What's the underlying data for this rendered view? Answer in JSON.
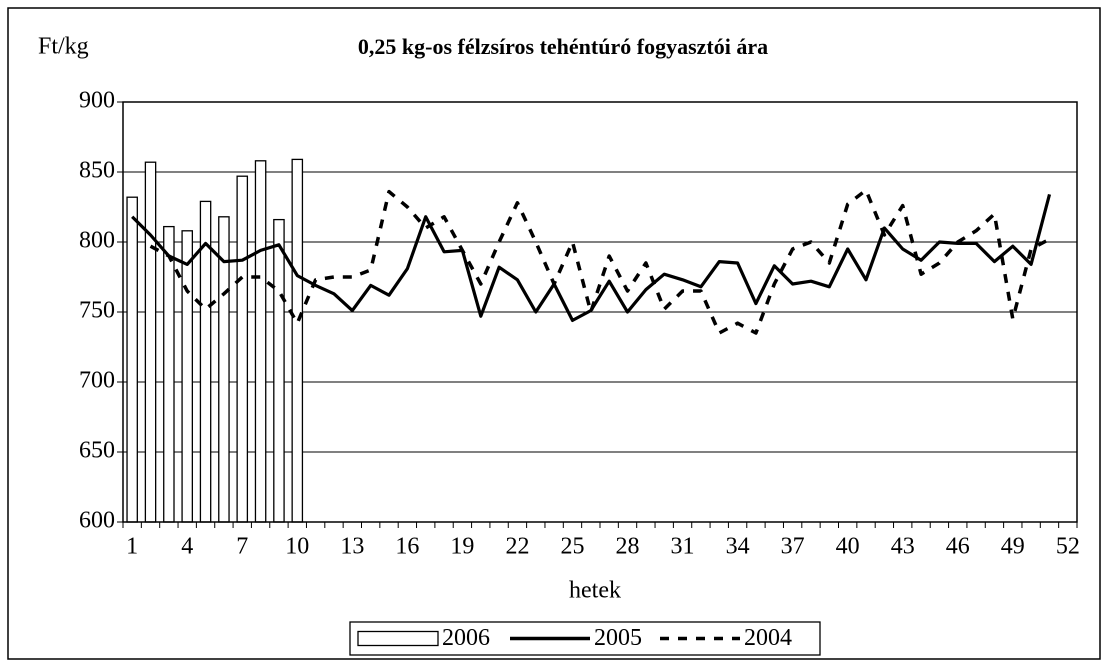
{
  "chart_data": {
    "type": "bar",
    "title": "0,25 kg-os félzsíros tehéntúró fogyasztói ára",
    "y_label": "Ft/kg",
    "x_label": "hetek",
    "categories": [
      1,
      null,
      null,
      4,
      null,
      null,
      7,
      null,
      null,
      10,
      null,
      null,
      13,
      null,
      null,
      16,
      null,
      null,
      19,
      null,
      null,
      22,
      null,
      null,
      25,
      null,
      null,
      28,
      null,
      null,
      31,
      null,
      null,
      34,
      null,
      null,
      37,
      null,
      null,
      40,
      null,
      null,
      43,
      null,
      null,
      46,
      null,
      null,
      49,
      null,
      null,
      52
    ],
    "series": [
      {
        "name": "2006",
        "type": "bar",
        "color": "#ffffff",
        "values": [
          832,
          857,
          811,
          808,
          829,
          818,
          847,
          858,
          816,
          859,
          null,
          null,
          null,
          null,
          null,
          null,
          null,
          null,
          null,
          null,
          null,
          null,
          null,
          null,
          null,
          null,
          null,
          null,
          null,
          null,
          null,
          null,
          null,
          null,
          null,
          null,
          null,
          null,
          null,
          null,
          null,
          null,
          null,
          null,
          null,
          null,
          null,
          null,
          null,
          null,
          null,
          null
        ]
      },
      {
        "name": "2005",
        "type": "line",
        "dashed": false,
        "color": "#000000",
        "values": [
          818,
          805,
          790,
          784,
          799,
          786,
          787,
          794,
          798,
          776,
          769,
          763,
          751,
          769,
          762,
          781,
          818,
          793,
          794,
          747,
          782,
          773,
          750,
          770,
          744,
          751,
          772,
          750,
          766,
          777,
          773,
          768,
          786,
          785,
          756,
          783,
          770,
          772,
          768,
          795,
          773,
          810,
          795,
          787,
          800,
          799,
          799,
          786,
          797,
          784,
          834,
          null
        ]
      },
      {
        "name": "2004",
        "type": "line",
        "dashed": true,
        "color": "#000000",
        "values": [
          null,
          797,
          790,
          765,
          752,
          763,
          775,
          775,
          765,
          742,
          773,
          775,
          775,
          780,
          836,
          825,
          810,
          818,
          794,
          770,
          800,
          828,
          800,
          770,
          800,
          750,
          790,
          765,
          785,
          752,
          765,
          765,
          735,
          742,
          735,
          770,
          795,
          800,
          785,
          827,
          837,
          805,
          826,
          777,
          785,
          800,
          808,
          820,
          745,
          795,
          802,
          null
        ]
      }
    ],
    "ylim": [
      600,
      900
    ],
    "yticks": [
      600,
      650,
      700,
      750,
      800,
      850,
      900
    ],
    "grid": true,
    "legend": "bottom"
  }
}
